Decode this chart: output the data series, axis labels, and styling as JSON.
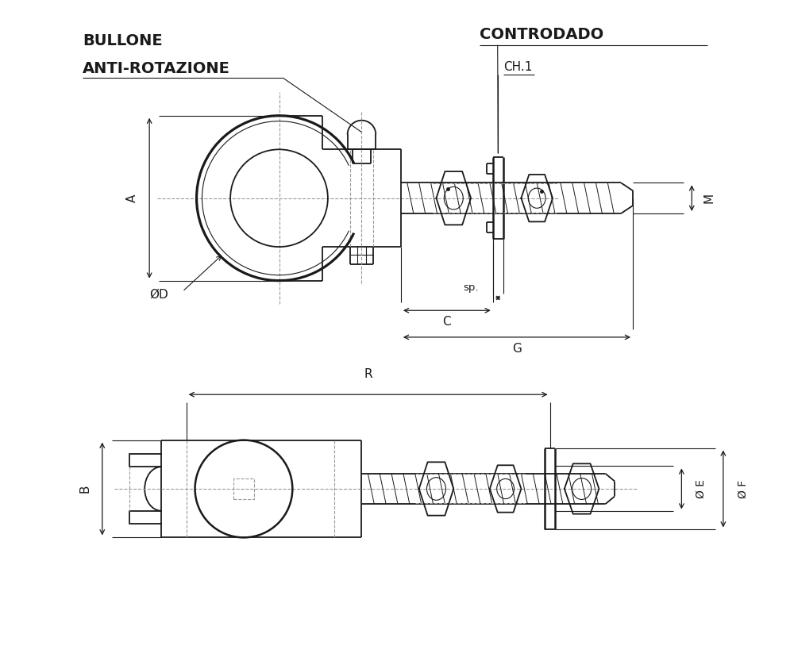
{
  "bg_color": "#ffffff",
  "line_color": "#1a1a1a",
  "dash_color": "#999999",
  "figsize": [
    10.0,
    8.33
  ],
  "dpi": 100,
  "labels": {
    "bullone": "BULLONE",
    "anti_rotazione": "ANTI-ROTAZIONE",
    "controdado": "CONTRODADO",
    "ch1": "CH.1",
    "dim_A": "A",
    "dim_B": "B",
    "dim_C": "C",
    "dim_D": "ØD",
    "dim_G": "G",
    "dim_M": "M",
    "dim_R": "R",
    "dim_sp": "sp.",
    "dim_E": "Ø E",
    "dim_F": "Ø F"
  }
}
